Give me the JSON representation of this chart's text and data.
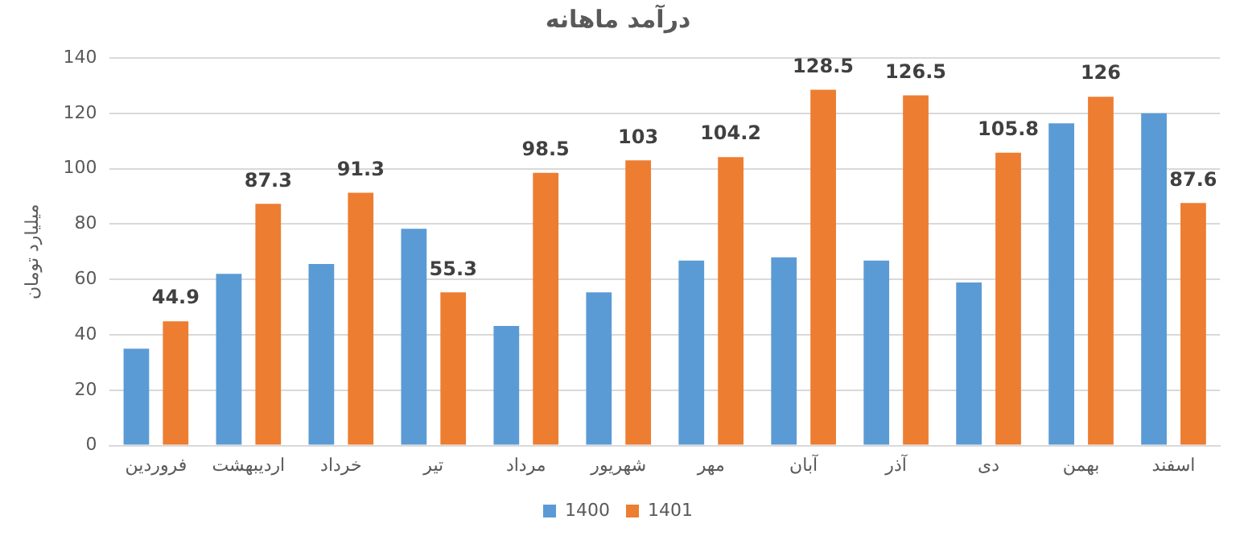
{
  "chart_data": {
    "type": "bar",
    "title": "درآمد ماهانه",
    "ylabel": "میلیارد تومان",
    "categories": [
      "فروردین",
      "اردیبهشت",
      "خرداد",
      "تیر",
      "مرداد",
      "شهریور",
      "مهر",
      "آبان",
      "آذر",
      "دی",
      "بهمن",
      "اسفند"
    ],
    "series": [
      {
        "name": "1400",
        "color": "#5b9bd5",
        "values": [
          35,
          62,
          65.6,
          78.3,
          43.2,
          55.3,
          66.8,
          68,
          66.8,
          58.9,
          116.4,
          120
        ]
      },
      {
        "name": "1401",
        "color": "#ed7d31",
        "values": [
          44.9,
          87.3,
          91.3,
          55.3,
          98.5,
          103,
          104.2,
          128.5,
          126.5,
          105.8,
          126,
          87.6
        ],
        "value_labels": [
          "44.9",
          "87.3",
          "91.3",
          "55.3",
          "98.5",
          "103",
          "104.2",
          "128.5",
          "126.5",
          "105.8",
          "126",
          "87.6"
        ]
      }
    ],
    "ylim": [
      0,
      140
    ],
    "yticks": [
      0,
      20,
      40,
      60,
      80,
      100,
      120,
      140
    ],
    "grid": "y",
    "legend": "bottom"
  }
}
